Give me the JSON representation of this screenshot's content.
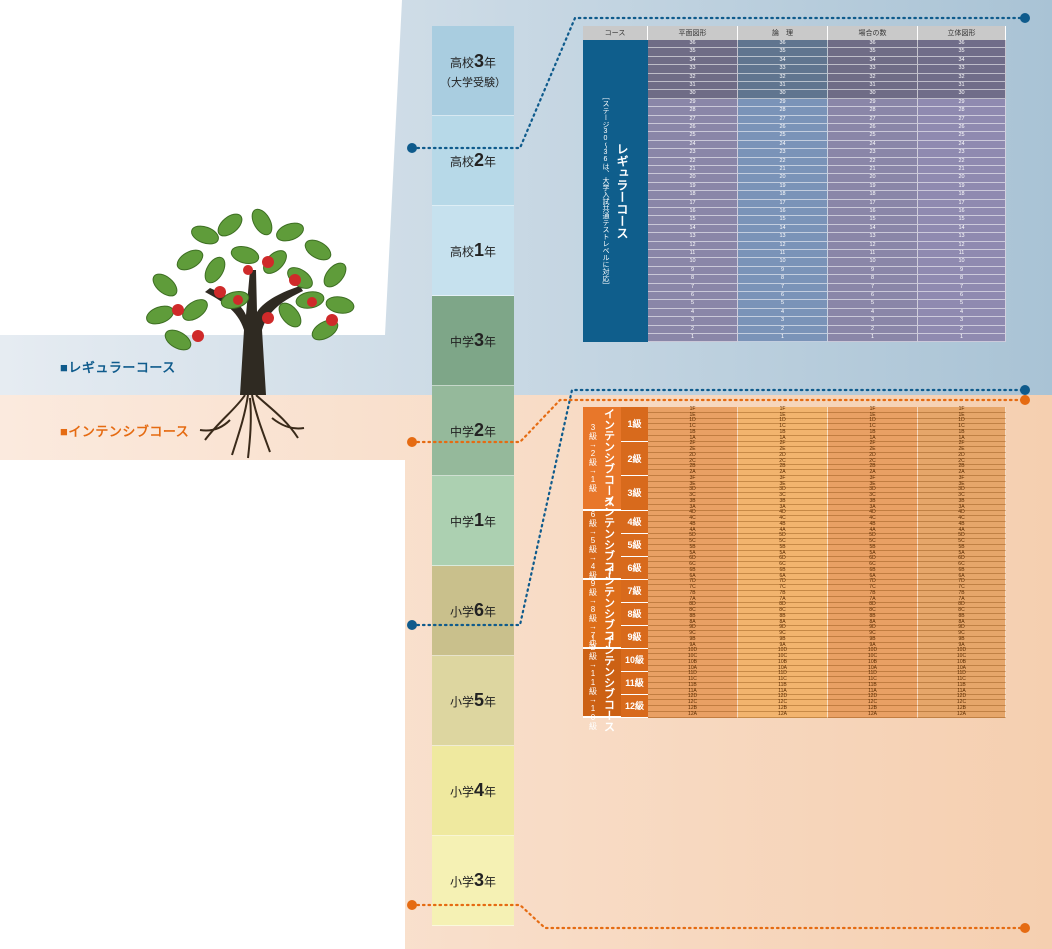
{
  "colors": {
    "regular_bg": "#c9d7e3",
    "intensive_bg": "#f8dcc4",
    "regular_accent": "#0f5b8c",
    "intensive_accent": "#e56b12",
    "regular_course_band": "#0f5e8c",
    "intensive_course_band": "#e86d10"
  },
  "legend": {
    "regular": "■レギュラーコース",
    "intensive": "■インテンシブコース"
  },
  "grades": [
    {
      "prefix": "高校",
      "num": "3",
      "suffix": "年",
      "sub": "（大学受験）",
      "color": "#a9cde0"
    },
    {
      "prefix": "高校",
      "num": "2",
      "suffix": "年",
      "sub": "",
      "color": "#b7d9e8"
    },
    {
      "prefix": "高校",
      "num": "1",
      "suffix": "年",
      "sub": "",
      "color": "#c6e1ee"
    },
    {
      "prefix": "中学",
      "num": "3",
      "suffix": "年",
      "sub": "",
      "color": "#7ea688"
    },
    {
      "prefix": "中学",
      "num": "2",
      "suffix": "年",
      "sub": "",
      "color": "#95b99b"
    },
    {
      "prefix": "中学",
      "num": "1",
      "suffix": "年",
      "sub": "",
      "color": "#acd0b1"
    },
    {
      "prefix": "小学",
      "num": "6",
      "suffix": "年",
      "sub": "",
      "color": "#c9c08c"
    },
    {
      "prefix": "小学",
      "num": "5",
      "suffix": "年",
      "sub": "",
      "color": "#ddd6a0"
    },
    {
      "prefix": "小学",
      "num": "4",
      "suffix": "年",
      "sub": "",
      "color": "#efe99f"
    },
    {
      "prefix": "小学",
      "num": "3",
      "suffix": "年",
      "sub": "",
      "color": "#f5f1b4"
    }
  ],
  "table_headers": [
    "コース",
    "平面図形",
    "論　理",
    "場合の数",
    "立体図形"
  ],
  "regular_course": {
    "title": "レギュラーコース",
    "note": "［ステージ30〜36は、大学入試共通テストレベルに対応］",
    "stages": [
      "36",
      "35",
      "34",
      "33",
      "32",
      "31",
      "30",
      "29",
      "28",
      "27",
      "26",
      "25",
      "24",
      "23",
      "22",
      "21",
      "20",
      "19",
      "18",
      "17",
      "16",
      "15",
      "14",
      "13",
      "12",
      "11",
      "10",
      "9",
      "8",
      "7",
      "6",
      "5",
      "4",
      "3",
      "2",
      "1"
    ]
  },
  "intensive_courses": [
    {
      "title": "インテンシブコース",
      "sub": "3級→2級→1級",
      "kyu": [
        {
          "label": "1級",
          "levels": [
            "1F",
            "1E",
            "1D",
            "1C",
            "1B",
            "1A"
          ]
        },
        {
          "label": "2級",
          "levels": [
            "2F",
            "2E",
            "2D",
            "2C",
            "2B",
            "2A"
          ]
        },
        {
          "label": "3級",
          "levels": [
            "3F",
            "3E",
            "3D",
            "3C",
            "3B",
            "3A"
          ]
        }
      ]
    },
    {
      "title": "インテンシブコース",
      "sub": "6級→5級→4級",
      "kyu": [
        {
          "label": "4級",
          "levels": [
            "4D",
            "4C",
            "4B",
            "4A"
          ]
        },
        {
          "label": "5級",
          "levels": [
            "5D",
            "5C",
            "5B",
            "5A"
          ]
        },
        {
          "label": "6級",
          "levels": [
            "6D",
            "6C",
            "6B",
            "6A"
          ]
        }
      ]
    },
    {
      "title": "インテンシブコース",
      "sub": "9級→8級→7級",
      "kyu": [
        {
          "label": "7級",
          "levels": [
            "7D",
            "7C",
            "7B",
            "7A"
          ]
        },
        {
          "label": "8級",
          "levels": [
            "8D",
            "8C",
            "8B",
            "8A"
          ]
        },
        {
          "label": "9級",
          "levels": [
            "9D",
            "9C",
            "9B",
            "9A"
          ]
        }
      ]
    },
    {
      "title": "インテンシブコース",
      "sub": "12級→11級→10級",
      "kyu": [
        {
          "label": "10級",
          "levels": [
            "10D",
            "10C",
            "10B",
            "10A"
          ]
        },
        {
          "label": "11級",
          "levels": [
            "11D",
            "11C",
            "11B",
            "11A"
          ]
        },
        {
          "label": "12級",
          "levels": [
            "12D",
            "12C",
            "12B",
            "12A"
          ]
        }
      ]
    }
  ]
}
